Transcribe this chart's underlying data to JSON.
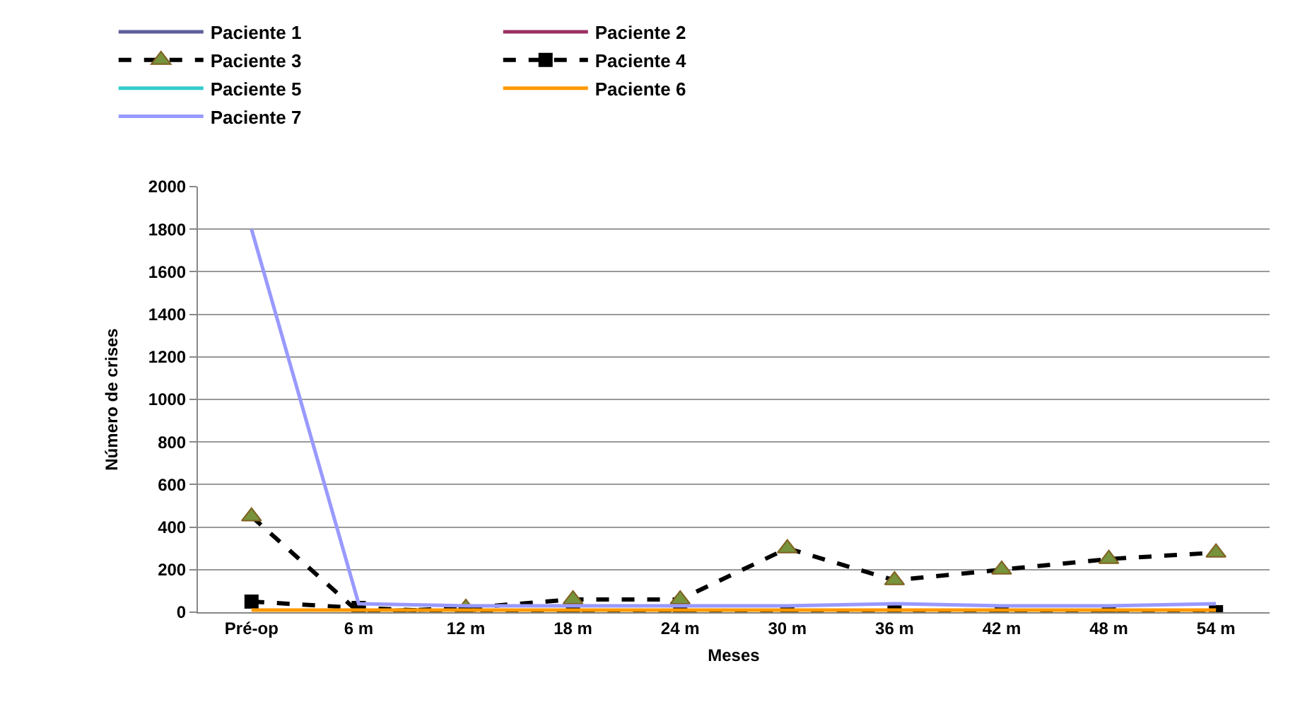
{
  "chart_data": {
    "type": "line",
    "xlabel": "Meses",
    "ylabel": "Número de crises",
    "categories": [
      "Pré-op",
      "6 m",
      "12 m",
      "18 m",
      "24 m",
      "30 m",
      "36 m",
      "42 m",
      "48 m",
      "54 m"
    ],
    "series": [
      {
        "name": "Paciente 1",
        "color": "#5f5f9b",
        "values": [
          null,
          null,
          null,
          null,
          null,
          null,
          null,
          null,
          null,
          null
        ]
      },
      {
        "name": "Paciente 2",
        "color": "#9b3063",
        "values": [
          null,
          null,
          null,
          null,
          null,
          null,
          null,
          null,
          null,
          null
        ]
      },
      {
        "name": "Paciente 3",
        "color": "#000000",
        "marker": "triangle",
        "line_style": "dashed",
        "values": [
          450,
          0,
          20,
          60,
          60,
          300,
          150,
          200,
          250,
          280
        ]
      },
      {
        "name": "Paciente 4",
        "color": "#000000",
        "marker": "square",
        "line_style": "dashed",
        "values": [
          50,
          20,
          0,
          0,
          0,
          0,
          0,
          0,
          0,
          0
        ]
      },
      {
        "name": "Paciente 5",
        "color": "#33cccc",
        "values": [
          null,
          null,
          null,
          null,
          null,
          null,
          null,
          null,
          null,
          null
        ]
      },
      {
        "name": "Paciente 6",
        "color": "#ff9900",
        "values": [
          10,
          10,
          10,
          10,
          10,
          10,
          10,
          10,
          10,
          10
        ]
      },
      {
        "name": "Paciente 7",
        "color": "#9999ff",
        "values": [
          1800,
          40,
          30,
          30,
          30,
          30,
          40,
          30,
          30,
          40
        ]
      }
    ],
    "ylim": [
      0,
      2000
    ],
    "yticks": [
      0,
      200,
      400,
      600,
      800,
      1000,
      1200,
      1400,
      1600,
      1800,
      2000
    ],
    "grid": "y",
    "legend": "top",
    "marker": "none",
    "line_style": "solid"
  }
}
